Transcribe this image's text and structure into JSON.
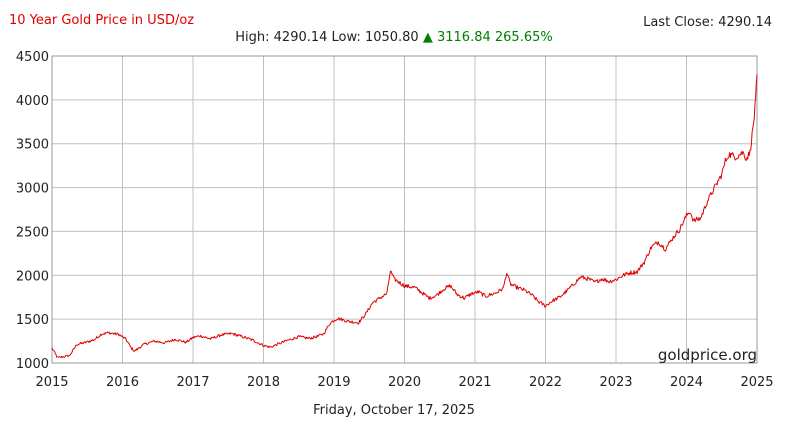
{
  "header": {
    "title": "10 Year Gold Price in USD/oz",
    "last_close_label": "Last Close: 4290.14",
    "high_low": "High: 4290.14 Low: 1050.80",
    "change": "▲ 3116.84 265.65%"
  },
  "footer": {
    "date": "Friday, October 17, 2025",
    "watermark": "goldprice.org"
  },
  "colors": {
    "line": "#e00000",
    "grid": "#c0c0c0",
    "title": "#e00000",
    "gain": "#008000"
  },
  "chart_data": {
    "type": "line",
    "title": "10 Year Gold Price in USD/oz",
    "xlabel": "",
    "ylabel": "",
    "xlim": [
      2015,
      2025
    ],
    "ylim": [
      1000,
      4500
    ],
    "x_ticks": [
      "2015",
      "2016",
      "2017",
      "2018",
      "2019",
      "2020",
      "2021",
      "2022",
      "2023",
      "2024",
      "2025"
    ],
    "y_ticks": [
      "1000",
      "1500",
      "2000",
      "2500",
      "3000",
      "3500",
      "4000",
      "4500"
    ],
    "grid": true,
    "series": [
      {
        "points": [
          [
            2015.0,
            1170
          ],
          [
            2015.08,
            1060
          ],
          [
            2015.25,
            1085
          ],
          [
            2015.35,
            1210
          ],
          [
            2015.5,
            1240
          ],
          [
            2015.6,
            1265
          ],
          [
            2015.7,
            1330
          ],
          [
            2015.8,
            1345
          ],
          [
            2015.95,
            1325
          ],
          [
            2016.05,
            1270
          ],
          [
            2016.12,
            1175
          ],
          [
            2016.17,
            1135
          ],
          [
            2016.3,
            1210
          ],
          [
            2016.45,
            1250
          ],
          [
            2016.6,
            1230
          ],
          [
            2016.75,
            1270
          ],
          [
            2016.9,
            1235
          ],
          [
            2017.0,
            1290
          ],
          [
            2017.1,
            1310
          ],
          [
            2017.25,
            1275
          ],
          [
            2017.4,
            1320
          ],
          [
            2017.55,
            1335
          ],
          [
            2017.7,
            1300
          ],
          [
            2017.85,
            1260
          ],
          [
            2018.0,
            1200
          ],
          [
            2018.1,
            1180
          ],
          [
            2018.2,
            1215
          ],
          [
            2018.35,
            1260
          ],
          [
            2018.5,
            1300
          ],
          [
            2018.65,
            1280
          ],
          [
            2018.75,
            1300
          ],
          [
            2018.85,
            1330
          ],
          [
            2018.95,
            1460
          ],
          [
            2019.05,
            1510
          ],
          [
            2019.2,
            1475
          ],
          [
            2019.35,
            1460
          ],
          [
            2019.45,
            1560
          ],
          [
            2019.55,
            1690
          ],
          [
            2019.65,
            1740
          ],
          [
            2019.75,
            1790
          ],
          [
            2019.8,
            2050
          ],
          [
            2019.85,
            1960
          ],
          [
            2020.0,
            1880
          ],
          [
            2020.15,
            1860
          ],
          [
            2020.25,
            1800
          ],
          [
            2020.35,
            1740
          ],
          [
            2020.45,
            1770
          ],
          [
            2020.55,
            1840
          ],
          [
            2020.65,
            1880
          ],
          [
            2020.75,
            1780
          ],
          [
            2020.85,
            1740
          ],
          [
            2020.95,
            1790
          ],
          [
            2021.05,
            1810
          ],
          [
            2021.15,
            1760
          ],
          [
            2021.3,
            1800
          ],
          [
            2021.4,
            1850
          ],
          [
            2021.45,
            2030
          ],
          [
            2021.5,
            1900
          ],
          [
            2021.6,
            1860
          ],
          [
            2021.7,
            1830
          ],
          [
            2021.8,
            1780
          ],
          [
            2021.9,
            1700
          ],
          [
            2022.0,
            1650
          ],
          [
            2022.08,
            1700
          ],
          [
            2022.2,
            1750
          ],
          [
            2022.3,
            1820
          ],
          [
            2022.4,
            1900
          ],
          [
            2022.5,
            1980
          ],
          [
            2022.6,
            1960
          ],
          [
            2022.7,
            1920
          ],
          [
            2022.8,
            1960
          ],
          [
            2022.9,
            1930
          ],
          [
            2023.0,
            1950
          ],
          [
            2023.1,
            2000
          ],
          [
            2023.2,
            2030
          ],
          [
            2023.3,
            2040
          ],
          [
            2023.4,
            2150
          ],
          [
            2023.5,
            2320
          ],
          [
            2023.6,
            2380
          ],
          [
            2023.7,
            2300
          ],
          [
            2023.8,
            2420
          ],
          [
            2023.9,
            2520
          ],
          [
            2024.0,
            2680
          ],
          [
            2024.05,
            2730
          ],
          [
            2024.1,
            2620
          ],
          [
            2024.2,
            2650
          ],
          [
            2024.3,
            2850
          ],
          [
            2024.4,
            3000
          ],
          [
            2024.5,
            3150
          ],
          [
            2024.55,
            3300
          ],
          [
            2024.6,
            3380
          ],
          [
            2024.7,
            3350
          ],
          [
            2024.8,
            3400
          ],
          [
            2024.85,
            3330
          ],
          [
            2024.9,
            3400
          ],
          [
            2024.93,
            3600
          ],
          [
            2024.96,
            3800
          ],
          [
            2024.98,
            4000
          ],
          [
            2025.0,
            4290
          ]
        ]
      }
    ]
  }
}
